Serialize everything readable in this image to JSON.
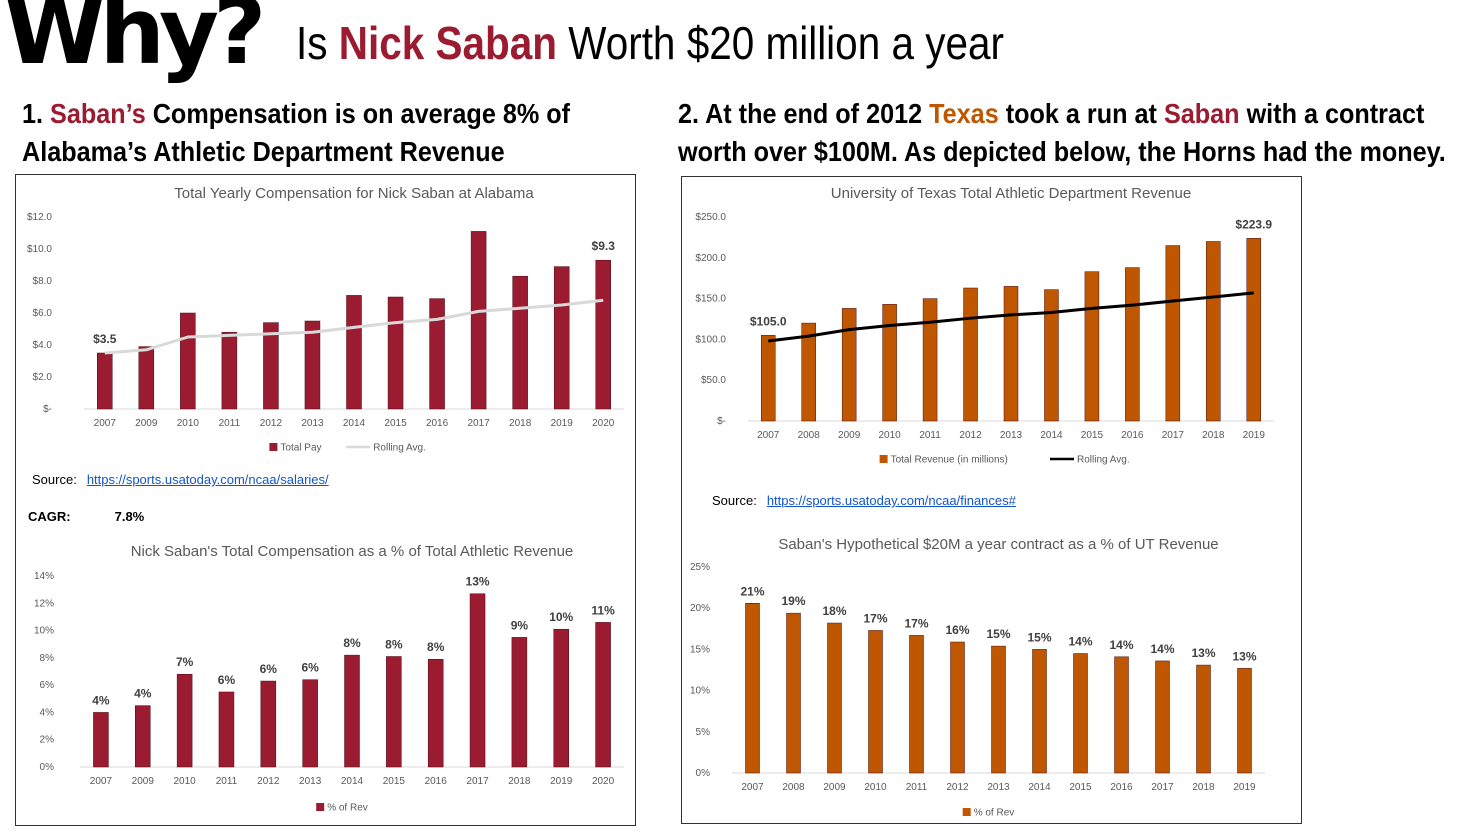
{
  "header": {
    "why": "Why?",
    "headline_pre": "Is ",
    "headline_name": "Nick Saban",
    "headline_post": " Worth $20 million a year"
  },
  "left": {
    "sub_num": "1. ",
    "sub_name": "Saban’s",
    "sub_rest1": " Compensation is on average 8% of",
    "sub_line2": "Alabama’s Athletic Department Revenue",
    "source_label": "Source:",
    "source_link": "https://sports.usatoday.com/ncaa/salaries/",
    "cagr_label": "CAGR:",
    "cagr_value": "7.8%"
  },
  "right": {
    "sub_pre": "2. At the end of 2012 ",
    "sub_texas": "Texas",
    "sub_mid": " took a run at ",
    "sub_saban": "Saban",
    "sub_post": " with a contract",
    "sub_line2": "worth over $100M. As depicted below, the Horns had the money.",
    "source_label": "Source:",
    "source_link": "https://sports.usatoday.com/ncaa/finances#"
  },
  "colors": {
    "crimson": "#9b1b30",
    "burnt_orange": "#bf5700",
    "rolling_gray": "#d9d9d9",
    "rolling_black": "#000000"
  },
  "chart_data": [
    {
      "type": "bar",
      "title": "Total Yearly Compensation for Nick Saban at Alabama",
      "categories": [
        "2007",
        "2009",
        "2010",
        "2011",
        "2012",
        "2013",
        "2014",
        "2015",
        "2016",
        "2017",
        "2018",
        "2019",
        "2020"
      ],
      "series": [
        {
          "name": "Total Pay",
          "type": "bar",
          "color": "#9b1b30",
          "values": [
            3.5,
            3.9,
            6.0,
            4.8,
            5.4,
            5.5,
            7.1,
            7.0,
            6.9,
            11.1,
            8.3,
            8.9,
            9.3
          ]
        },
        {
          "name": "Rolling Avg.",
          "type": "line",
          "color": "#d9d9d9",
          "values": [
            3.5,
            3.7,
            4.5,
            4.6,
            4.7,
            4.8,
            5.1,
            5.4,
            5.6,
            6.1,
            6.3,
            6.5,
            6.8
          ]
        }
      ],
      "data_labels": [
        {
          "index": 0,
          "text": "$3.5"
        },
        {
          "index": 12,
          "text": "$9.3"
        }
      ],
      "yticks": [
        "$-",
        "$2.0",
        "$4.0",
        "$6.0",
        "$8.0",
        "$10.0",
        "$12.0"
      ],
      "ylim": [
        0,
        12
      ],
      "legend": "bottom",
      "grid": false
    },
    {
      "type": "bar",
      "title": "Nick Saban's Total Compensation as a % of Total Athletic Revenue",
      "categories": [
        "2007",
        "2009",
        "2010",
        "2011",
        "2012",
        "2013",
        "2014",
        "2015",
        "2016",
        "2017",
        "2018",
        "2019",
        "2020"
      ],
      "series": [
        {
          "name": "% of Rev",
          "color": "#9b1b30",
          "values": [
            4.0,
            4.5,
            6.8,
            5.5,
            6.3,
            6.4,
            8.2,
            8.1,
            7.9,
            12.7,
            9.5,
            10.1,
            10.6
          ],
          "labels": [
            "4%",
            "4%",
            "7%",
            "6%",
            "6%",
            "6%",
            "8%",
            "8%",
            "8%",
            "13%",
            "9%",
            "10%",
            "11%"
          ]
        }
      ],
      "yticks": [
        "0%",
        "2%",
        "4%",
        "6%",
        "8%",
        "10%",
        "12%",
        "14%"
      ],
      "ylim": [
        0,
        14
      ],
      "legend": "bottom",
      "grid": false
    },
    {
      "type": "bar",
      "title": "University of Texas Total Athletic Department Revenue",
      "categories": [
        "2007",
        "2008",
        "2009",
        "2010",
        "2011",
        "2012",
        "2013",
        "2014",
        "2015",
        "2016",
        "2017",
        "2018",
        "2019"
      ],
      "series": [
        {
          "name": "Total Revenue (in millions)",
          "type": "bar",
          "color": "#bf5700",
          "values": [
            105.0,
            120.0,
            138.0,
            143.0,
            150.0,
            163.0,
            165.0,
            161.0,
            183.0,
            188.0,
            215.0,
            220.0,
            223.9
          ]
        },
        {
          "name": "Rolling Avg.",
          "type": "line",
          "color": "#000000",
          "values": [
            98,
            104,
            112,
            117,
            121,
            126,
            130,
            133,
            138,
            142,
            147,
            152,
            157
          ]
        }
      ],
      "data_labels": [
        {
          "index": 0,
          "text": "$105.0"
        },
        {
          "index": 12,
          "text": "$223.9"
        }
      ],
      "yticks": [
        "$-",
        "$50.0",
        "$100.0",
        "$150.0",
        "$200.0",
        "$250.0"
      ],
      "ylim": [
        0,
        250
      ],
      "legend": "bottom",
      "grid": false
    },
    {
      "type": "bar",
      "title": "Saban's Hypothetical $20M a year contract as a % of UT Revenue",
      "categories": [
        "2007",
        "2008",
        "2009",
        "2010",
        "2011",
        "2012",
        "2013",
        "2014",
        "2015",
        "2016",
        "2017",
        "2018",
        "2019"
      ],
      "series": [
        {
          "name": "% of Rev",
          "color": "#bf5700",
          "values": [
            20.6,
            19.4,
            18.2,
            17.3,
            16.7,
            15.9,
            15.4,
            15.0,
            14.5,
            14.1,
            13.6,
            13.1,
            12.7
          ],
          "labels": [
            "21%",
            "19%",
            "18%",
            "17%",
            "17%",
            "16%",
            "15%",
            "15%",
            "14%",
            "14%",
            "14%",
            "13%",
            "13%"
          ]
        }
      ],
      "yticks": [
        "0%",
        "5%",
        "10%",
        "15%",
        "20%",
        "25%"
      ],
      "ylim": [
        0,
        25
      ],
      "legend": "bottom",
      "grid": false
    }
  ]
}
